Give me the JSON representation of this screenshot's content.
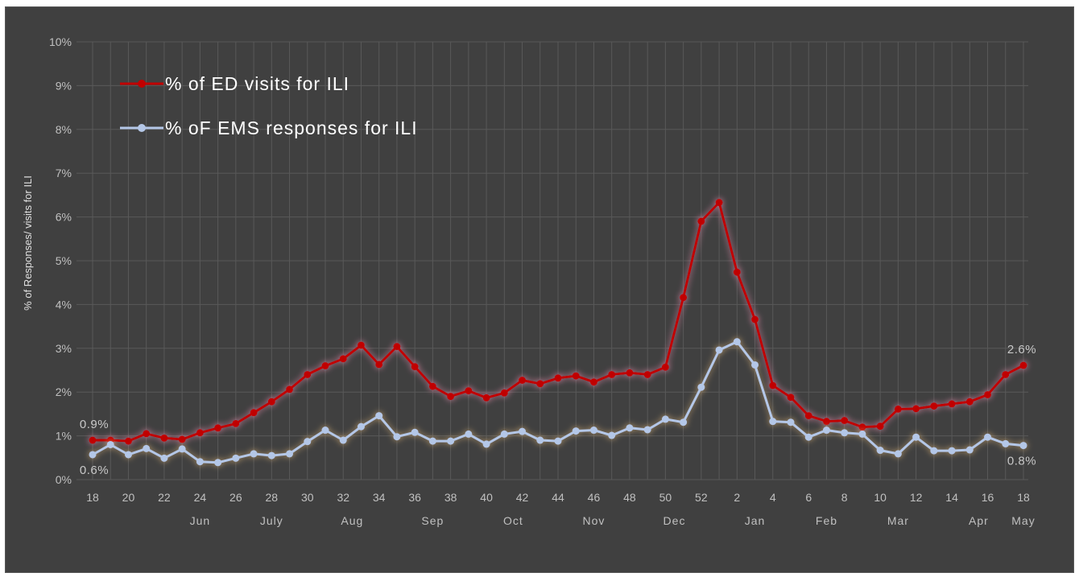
{
  "colors": {
    "background": "#404040",
    "grid": "#595959",
    "ed_series": "#c00000",
    "ems_series": "#b4c7e7",
    "text": "#c0c0c0"
  },
  "chart_data": {
    "type": "line",
    "title": "",
    "xlabel": "",
    "ylabel": "% of Responses/ visits for ILI",
    "ylim": [
      0,
      10
    ],
    "yticks": [
      "0%",
      "1%",
      "2%",
      "3%",
      "4%",
      "5%",
      "6%",
      "7%",
      "8%",
      "9%",
      "10%"
    ],
    "grid": true,
    "legend_position": "top-left",
    "x": [
      "18",
      "19",
      "20",
      "21",
      "22",
      "23",
      "24",
      "25",
      "26",
      "27",
      "28",
      "29",
      "30",
      "31",
      "32",
      "33",
      "34",
      "35",
      "36",
      "37",
      "38",
      "39",
      "40",
      "41",
      "42",
      "43",
      "44",
      "45",
      "46",
      "47",
      "48",
      "49",
      "50",
      "51",
      "52",
      "1",
      "2",
      "3",
      "4",
      "5",
      "6",
      "7",
      "8",
      "9",
      "10",
      "11",
      "12",
      "13",
      "14",
      "15",
      "16",
      "17",
      "18"
    ],
    "x_tick_labels": [
      "18",
      "20",
      "22",
      "24",
      "26",
      "28",
      "30",
      "32",
      "34",
      "36",
      "38",
      "40",
      "42",
      "44",
      "46",
      "48",
      "50",
      "52",
      "2",
      "4",
      "6",
      "8",
      "10",
      "12",
      "14",
      "16",
      "18"
    ],
    "month_labels": [
      {
        "label": "Jun",
        "week_index": 6
      },
      {
        "label": "July",
        "week_index": 10
      },
      {
        "label": "Aug",
        "week_index": 14.5
      },
      {
        "label": "Sep",
        "week_index": 19
      },
      {
        "label": "Oct",
        "week_index": 23.5
      },
      {
        "label": "Nov",
        "week_index": 28
      },
      {
        "label": "Dec",
        "week_index": 32.5
      },
      {
        "label": "Jan",
        "week_index": 37
      },
      {
        "label": "Feb",
        "week_index": 41
      },
      {
        "label": "Mar",
        "week_index": 45
      },
      {
        "label": "Apr",
        "week_index": 49.5
      },
      {
        "label": "May",
        "week_index": 52
      }
    ],
    "series": [
      {
        "name": "% of ED visits for ILI",
        "color": "#c00000",
        "values": [
          0.9,
          0.9,
          0.88,
          1.05,
          0.95,
          0.92,
          1.07,
          1.18,
          1.28,
          1.53,
          1.78,
          2.06,
          2.4,
          2.6,
          2.76,
          3.07,
          2.63,
          3.04,
          2.58,
          2.13,
          1.9,
          2.03,
          1.87,
          1.98,
          2.27,
          2.19,
          2.32,
          2.37,
          2.23,
          2.4,
          2.44,
          2.4,
          2.57,
          4.16,
          5.9,
          6.33,
          4.74,
          3.66,
          2.15,
          1.88,
          1.46,
          1.33,
          1.35,
          1.2,
          1.22,
          1.61,
          1.62,
          1.68,
          1.73,
          1.78,
          1.94,
          2.4,
          2.61
        ]
      },
      {
        "name": "% oF EMS responses for ILI",
        "color": "#b4c7e7",
        "values": [
          0.57,
          0.8,
          0.57,
          0.71,
          0.49,
          0.7,
          0.41,
          0.39,
          0.49,
          0.59,
          0.55,
          0.59,
          0.87,
          1.13,
          0.9,
          1.21,
          1.46,
          0.98,
          1.08,
          0.88,
          0.88,
          1.04,
          0.81,
          1.04,
          1.1,
          0.9,
          0.88,
          1.11,
          1.13,
          1.01,
          1.18,
          1.14,
          1.38,
          1.31,
          2.11,
          2.96,
          3.15,
          2.62,
          1.33,
          1.31,
          0.97,
          1.13,
          1.07,
          1.04,
          0.67,
          0.59,
          0.97,
          0.66,
          0.66,
          0.68,
          0.97,
          0.82,
          0.78
        ]
      }
    ],
    "data_labels": [
      {
        "series": 0,
        "index": 0,
        "text": "0.9%"
      },
      {
        "series": 1,
        "index": 0,
        "text": "0.6%"
      },
      {
        "series": 0,
        "index": 52,
        "text": "2.6%"
      },
      {
        "series": 1,
        "index": 52,
        "text": "0.8%"
      }
    ]
  }
}
